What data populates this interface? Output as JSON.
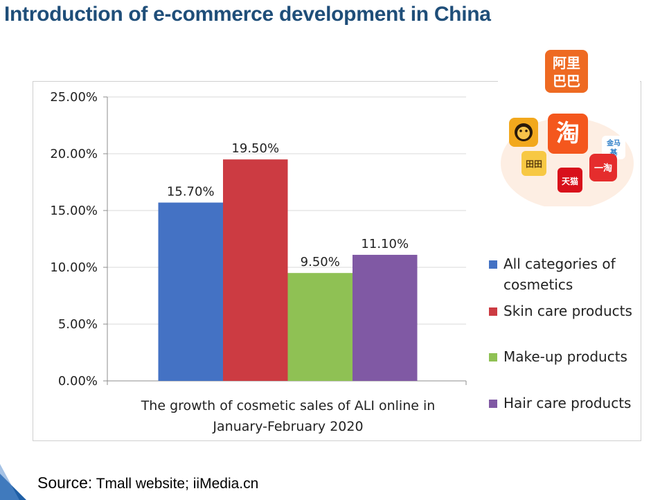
{
  "slide": {
    "title": "Introduction of e-commerce development in China",
    "source_label": "Source:",
    "source_text": " Tmall website; iiMedia.cn"
  },
  "colors": {
    "title": "#1f4e79",
    "series": [
      "#4472c4",
      "#cc3b42",
      "#8fc154",
      "#8059a4"
    ],
    "grid": "#d9d9d9",
    "axis": "#8c8c8c",
    "corner": "#1f5fa6"
  },
  "logo_panel": {
    "icons": [
      "alibaba-logo-icon",
      "taobao-logo-icon",
      "tmall-logo-icon",
      "juhuasuan-logo-icon",
      "yitao-logo-icon",
      "tiantian-logo-icon",
      "lion-mascot-icon"
    ],
    "alibaba_text": [
      "阿里",
      "巴巴"
    ],
    "taobao_char": "淘",
    "tmall_text": "天猫",
    "yitao_text": "一淘",
    "tiantian_text": "田田",
    "jhs_text": [
      "金马",
      "基"
    ]
  },
  "chart_data": {
    "type": "bar",
    "categories": [
      "The growth of cosmetic sales of ALI online in January-February 2020"
    ],
    "category_label_lines": [
      "The growth of cosmetic sales of ALI online in",
      "January-February 2020"
    ],
    "series": [
      {
        "name": "All categories of cosmetics",
        "name_lines": [
          "All categories of",
          "cosmetics"
        ],
        "values": [
          15.7
        ],
        "label": "15.70%"
      },
      {
        "name": "Skin care products",
        "name_lines": [
          "Skin care products"
        ],
        "values": [
          19.5
        ],
        "label": "19.50%"
      },
      {
        "name": "Make-up products",
        "name_lines": [
          "Make-up products"
        ],
        "values": [
          9.5
        ],
        "label": "9.50%"
      },
      {
        "name": "Hair care products",
        "name_lines": [
          "Hair care products"
        ],
        "values": [
          11.1
        ],
        "label": "11.10%"
      }
    ],
    "y_ticks": [
      0,
      5,
      10,
      15,
      20,
      25
    ],
    "y_tick_labels": [
      "0.00%",
      "5.00%",
      "10.00%",
      "15.00%",
      "20.00%",
      "25.00%"
    ],
    "ylim": [
      0,
      25
    ],
    "title": "",
    "xlabel": "",
    "ylabel": "",
    "grid": true,
    "legend_position": "right"
  }
}
